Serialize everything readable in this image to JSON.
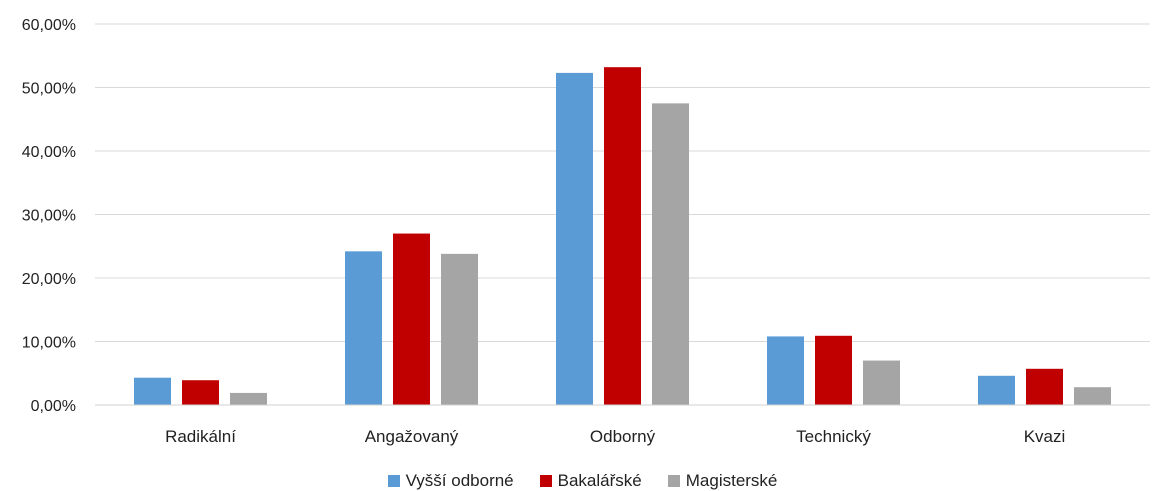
{
  "chart_data": {
    "type": "bar",
    "categories": [
      "Radikální",
      "Angažovaný",
      "Odborný",
      "Technický",
      "Kvazi"
    ],
    "series": [
      {
        "name": "Vyšší odborné",
        "color": "#5b9bd5",
        "values": [
          4.3,
          24.2,
          52.3,
          10.8,
          4.6
        ]
      },
      {
        "name": "Bakalářské",
        "color": "#c00000",
        "values": [
          3.9,
          27.0,
          53.2,
          10.9,
          5.7
        ]
      },
      {
        "name": "Magisterské",
        "color": "#a5a5a5",
        "values": [
          1.9,
          23.8,
          47.5,
          7.0,
          2.8
        ]
      }
    ],
    "ylim": [
      0,
      60
    ],
    "yticks": [
      "0,00%",
      "10,00%",
      "20,00%",
      "30,00%",
      "40,00%",
      "50,00%",
      "60,00%"
    ],
    "grid": true,
    "legend": "bottom",
    "title": "",
    "xlabel": "",
    "ylabel": ""
  }
}
